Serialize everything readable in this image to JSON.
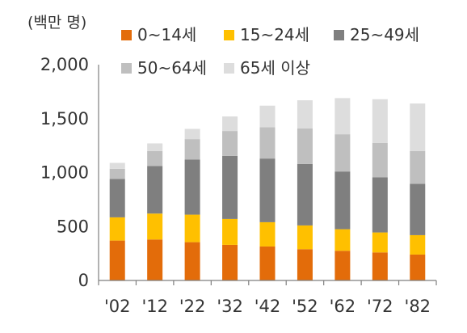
{
  "chart_data": {
    "type": "bar",
    "stacked": true,
    "unit_label": "(백만 명)",
    "categories": [
      "'02",
      "'12",
      "'22",
      "'32",
      "'42",
      "'52",
      "'62",
      "'72",
      "'82"
    ],
    "yticks": [
      "0",
      "500",
      "1,000",
      "1,500",
      "2,000"
    ],
    "ylim": [
      0,
      2000
    ],
    "grid": false,
    "legend_position": "top",
    "series": [
      {
        "name": "0~14세",
        "color": "#e36c0a",
        "values": [
          370,
          380,
          355,
          330,
          315,
          290,
          275,
          260,
          240
        ]
      },
      {
        "name": "15~24세",
        "color": "#ffc000",
        "values": [
          215,
          240,
          255,
          240,
          225,
          220,
          200,
          185,
          180
        ]
      },
      {
        "name": "25~49세",
        "color": "#7f7f7f",
        "values": [
          355,
          440,
          510,
          585,
          590,
          570,
          535,
          510,
          475
        ]
      },
      {
        "name": "50~64세",
        "color": "#bfbfbf",
        "values": [
          95,
          140,
          190,
          230,
          290,
          330,
          345,
          320,
          305
        ]
      },
      {
        "name": "65세 이상",
        "color": "#dddddd",
        "values": [
          55,
          70,
          95,
          135,
          200,
          260,
          335,
          405,
          440
        ]
      }
    ]
  }
}
